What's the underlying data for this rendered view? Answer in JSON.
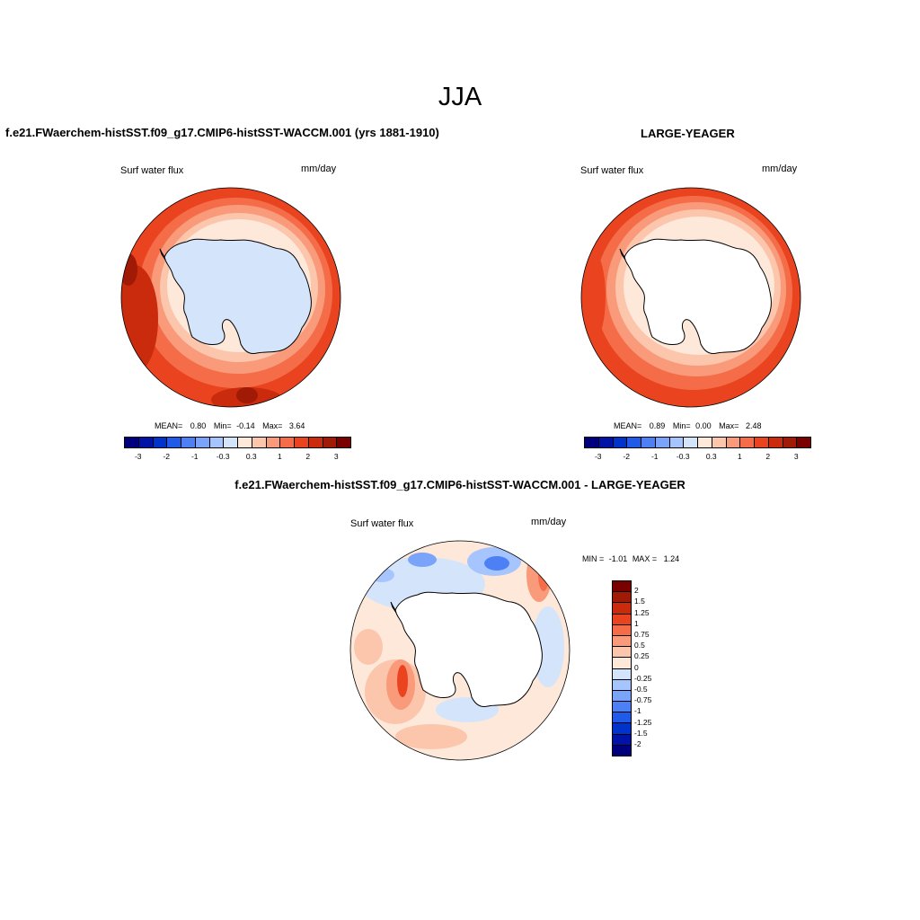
{
  "page_title": "JJA",
  "panel1": {
    "title": "f.e21.FWaerchem-histSST.f09_g17.CMIP6-histSST-WACCM.001 (yrs 1881-1910)",
    "variable": "Surf water flux",
    "units": "mm/day",
    "stats": {
      "mean_label": "MEAN=",
      "mean": "0.80",
      "min_label": "Min=",
      "min": "-0.14",
      "max_label": "Max=",
      "max": "3.64"
    }
  },
  "panel2": {
    "title": "LARGE-YEAGER",
    "variable": "Surf water flux",
    "units": "mm/day",
    "stats": {
      "mean_label": "MEAN=",
      "mean": "0.89",
      "min_label": "Min=",
      "min": "0.00",
      "max_label": "Max=",
      "max": "2.48"
    }
  },
  "panel3": {
    "title": "f.e21.FWaerchem-histSST.f09_g17.CMIP6-histSST-WACCM.001 - LARGE-YEAGER",
    "variable": "Surf water flux",
    "units": "mm/day",
    "minmax": {
      "min_label": "MIN =",
      "min": "-1.01",
      "max_label": "MAX =",
      "max": "1.24"
    }
  },
  "horizontal_colorbar": {
    "colors": [
      "#00007f",
      "#0013a6",
      "#0033cc",
      "#1f5ae8",
      "#4d7ff5",
      "#7aa3fa",
      "#a6c4fd",
      "#d4e5fb",
      "#fde8da",
      "#fcc6ad",
      "#f99a7a",
      "#f56d48",
      "#e9441f",
      "#c92b0c",
      "#a01a05",
      "#7a0000"
    ],
    "ticks": [
      "-3",
      "-2",
      "-1",
      "-0.3",
      "0.3",
      "1",
      "2",
      "3"
    ]
  },
  "vertical_colorbar": {
    "colors": [
      "#7a0000",
      "#a01a05",
      "#c92b0c",
      "#e9441f",
      "#f56d48",
      "#f99a7a",
      "#fcc6ad",
      "#fde8da",
      "#d4e5fb",
      "#a6c4fd",
      "#7aa3fa",
      "#4d7ff5",
      "#1f5ae8",
      "#0033cc",
      "#0013a6",
      "#00007f"
    ],
    "ticks": [
      "2",
      "1.5",
      "1.25",
      "1",
      "0.75",
      "0.5",
      "0.25",
      "0",
      "-0.25",
      "-0.5",
      "-0.75",
      "-1",
      "-1.25",
      "-1.5",
      "-2"
    ]
  }
}
